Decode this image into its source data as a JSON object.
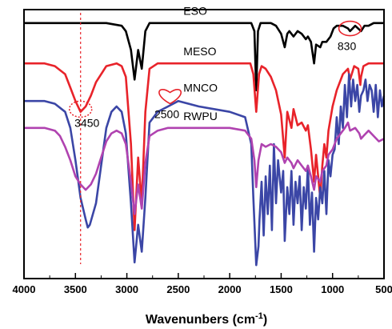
{
  "chart_data": {
    "type": "line",
    "title": "",
    "xlabel": "Wavenunbers (cm",
    "xlabel_sup": "-1",
    "xlabel_close": ")",
    "ylabel": "",
    "xlim": [
      4000,
      500
    ],
    "x_reversed": true,
    "y_axis_ticks_labeled": false,
    "xticks": [
      "4000",
      "3500",
      "3000",
      "2500",
      "2000",
      "1500",
      "1000",
      "500"
    ],
    "xtick_values": [
      4000,
      3500,
      3000,
      2500,
      2000,
      1500,
      1000,
      500
    ],
    "grid": false,
    "legend": "none",
    "series": [
      {
        "name": "ESO",
        "color": "#000000",
        "baseline": 0.95,
        "x": [
          4000,
          3600,
          3200,
          3050,
          3010,
          2960,
          2925,
          2890,
          2855,
          2820,
          2780,
          2500,
          2000,
          1790,
          1760,
          1742,
          1725,
          1700,
          1650,
          1600,
          1550,
          1500,
          1465,
          1440,
          1420,
          1380,
          1340,
          1300,
          1260,
          1240,
          1210,
          1180,
          1160,
          1120,
          1100,
          1060,
          1020,
          990,
          960,
          900,
          850,
          830,
          780,
          723,
          690,
          650,
          600,
          500
        ],
        "y": [
          0.95,
          0.95,
          0.95,
          0.94,
          0.92,
          0.85,
          0.74,
          0.85,
          0.78,
          0.92,
          0.95,
          0.95,
          0.95,
          0.95,
          0.92,
          0.7,
          0.92,
          0.95,
          0.95,
          0.95,
          0.94,
          0.91,
          0.86,
          0.91,
          0.92,
          0.9,
          0.92,
          0.91,
          0.89,
          0.9,
          0.88,
          0.8,
          0.87,
          0.86,
          0.88,
          0.88,
          0.9,
          0.93,
          0.94,
          0.94,
          0.93,
          0.92,
          0.94,
          0.92,
          0.94,
          0.94,
          0.95,
          0.95
        ]
      },
      {
        "name": "MESO",
        "color": "#e8232a",
        "baseline": 0.8,
        "x": [
          4000,
          3800,
          3700,
          3600,
          3550,
          3500,
          3450,
          3400,
          3350,
          3300,
          3200,
          3100,
          3050,
          3010,
          2960,
          2925,
          2890,
          2855,
          2820,
          2780,
          2700,
          2600,
          2500,
          2000,
          1800,
          1770,
          1742,
          1715,
          1690,
          1650,
          1600,
          1550,
          1500,
          1465,
          1440,
          1400,
          1380,
          1340,
          1300,
          1260,
          1240,
          1210,
          1180,
          1160,
          1120,
          1100,
          1080,
          1060,
          1040,
          1000,
          960,
          900,
          850,
          830,
          790,
          750,
          730,
          723,
          700,
          650,
          600,
          500
        ],
        "y": [
          0.8,
          0.8,
          0.79,
          0.76,
          0.71,
          0.66,
          0.62,
          0.64,
          0.68,
          0.73,
          0.79,
          0.8,
          0.79,
          0.75,
          0.5,
          0.18,
          0.45,
          0.28,
          0.62,
          0.78,
          0.8,
          0.8,
          0.8,
          0.8,
          0.8,
          0.76,
          0.62,
          0.76,
          0.79,
          0.78,
          0.75,
          0.7,
          0.61,
          0.45,
          0.62,
          0.56,
          0.63,
          0.57,
          0.58,
          0.55,
          0.57,
          0.48,
          0.36,
          0.46,
          0.3,
          0.42,
          0.5,
          0.45,
          0.55,
          0.64,
          0.7,
          0.76,
          0.78,
          0.74,
          0.79,
          0.78,
          0.72,
          0.75,
          0.79,
          0.8,
          0.8,
          0.8
        ]
      },
      {
        "name": "MNCO",
        "color": "#3b46a6",
        "baseline": 0.66,
        "x": [
          4000,
          3800,
          3700,
          3600,
          3550,
          3500,
          3450,
          3400,
          3380,
          3360,
          3300,
          3250,
          3200,
          3150,
          3100,
          3050,
          3010,
          2960,
          2925,
          2890,
          2855,
          2820,
          2780,
          2700,
          2600,
          2500,
          2300,
          2000,
          1850,
          1790,
          1770,
          1742,
          1720,
          1710,
          1690,
          1670,
          1650,
          1630,
          1610,
          1590,
          1570,
          1550,
          1530,
          1500,
          1480,
          1465,
          1440,
          1420,
          1400,
          1380,
          1360,
          1340,
          1320,
          1300,
          1280,
          1260,
          1240,
          1220,
          1200,
          1180,
          1160,
          1140,
          1120,
          1100,
          1080,
          1060,
          1040,
          1020,
          1000,
          980,
          960,
          940,
          920,
          900,
          880,
          860,
          840,
          830,
          820,
          800,
          780,
          760,
          740,
          723,
          700,
          680,
          660,
          640,
          620,
          600,
          580,
          560,
          540,
          520,
          500
        ],
        "y": [
          0.66,
          0.66,
          0.65,
          0.62,
          0.56,
          0.44,
          0.3,
          0.22,
          0.19,
          0.2,
          0.28,
          0.42,
          0.56,
          0.62,
          0.64,
          0.62,
          0.54,
          0.28,
          0.06,
          0.2,
          0.1,
          0.3,
          0.58,
          0.62,
          0.64,
          0.66,
          0.64,
          0.62,
          0.6,
          0.5,
          0.3,
          0.05,
          0.12,
          0.22,
          0.36,
          0.16,
          0.38,
          0.24,
          0.42,
          0.18,
          0.5,
          0.28,
          0.44,
          0.32,
          0.4,
          0.14,
          0.34,
          0.24,
          0.4,
          0.2,
          0.36,
          0.28,
          0.38,
          0.18,
          0.34,
          0.26,
          0.42,
          0.2,
          0.32,
          0.1,
          0.3,
          0.22,
          0.34,
          0.28,
          0.4,
          0.24,
          0.44,
          0.38,
          0.46,
          0.48,
          0.6,
          0.5,
          0.64,
          0.56,
          0.72,
          0.6,
          0.76,
          0.7,
          0.64,
          0.74,
          0.66,
          0.72,
          0.62,
          0.68,
          0.7,
          0.74,
          0.66,
          0.72,
          0.7,
          0.62,
          0.72,
          0.6,
          0.7,
          0.64,
          0.68
        ]
      },
      {
        "name": "RWPU",
        "color": "#b043b0",
        "baseline": 0.56,
        "x": [
          4000,
          3800,
          3700,
          3650,
          3600,
          3550,
          3500,
          3450,
          3400,
          3350,
          3300,
          3250,
          3200,
          3150,
          3100,
          3050,
          3010,
          2960,
          2925,
          2890,
          2855,
          2820,
          2780,
          2700,
          2600,
          2500,
          2300,
          2000,
          1850,
          1790,
          1760,
          1742,
          1720,
          1690,
          1650,
          1600,
          1550,
          1500,
          1465,
          1440,
          1400,
          1380,
          1340,
          1300,
          1260,
          1240,
          1210,
          1180,
          1160,
          1120,
          1100,
          1060,
          1040,
          1000,
          960,
          920,
          880,
          850,
          830,
          780,
          740,
          723,
          700,
          650,
          600,
          550,
          500
        ],
        "y": [
          0.56,
          0.56,
          0.55,
          0.53,
          0.49,
          0.44,
          0.38,
          0.35,
          0.33,
          0.35,
          0.39,
          0.45,
          0.51,
          0.54,
          0.55,
          0.54,
          0.5,
          0.36,
          0.24,
          0.35,
          0.26,
          0.43,
          0.53,
          0.55,
          0.56,
          0.56,
          0.56,
          0.56,
          0.55,
          0.52,
          0.44,
          0.34,
          0.44,
          0.5,
          0.49,
          0.5,
          0.49,
          0.47,
          0.43,
          0.45,
          0.43,
          0.41,
          0.44,
          0.42,
          0.4,
          0.42,
          0.38,
          0.33,
          0.38,
          0.36,
          0.4,
          0.42,
          0.46,
          0.48,
          0.52,
          0.54,
          0.56,
          0.58,
          0.55,
          0.56,
          0.54,
          0.52,
          0.53,
          0.55,
          0.53,
          0.51,
          0.52
        ]
      }
    ],
    "annotations": [
      {
        "text": "3450",
        "x": 3450,
        "shape": "dashed-ellipse",
        "color": "#e8232a",
        "series": "MESO"
      },
      {
        "text": "2500",
        "x": 2580,
        "shape": "heart-outline",
        "color": "#e8232a",
        "series": "MNCO"
      },
      {
        "text": "830",
        "x": 830,
        "shape": "ellipse",
        "color": "#e8232a",
        "series": "ESO"
      },
      {
        "text": "",
        "x": 3450,
        "shape": "vertical-dashed-line",
        "color": "#e8232a"
      }
    ]
  }
}
